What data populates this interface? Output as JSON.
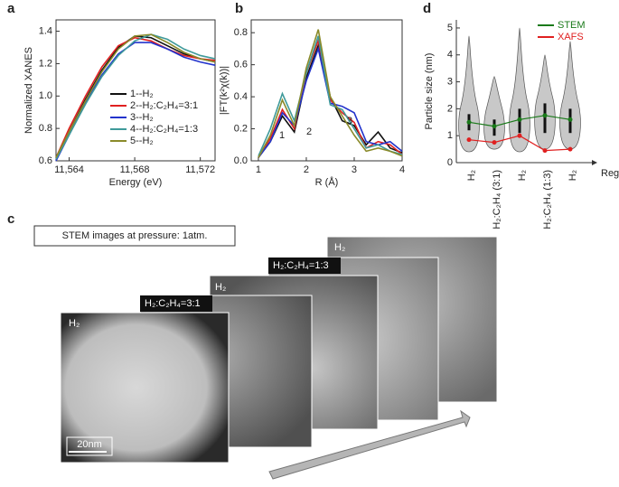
{
  "panel_labels": [
    "a",
    "b",
    "c",
    "d"
  ],
  "chart_data": [
    {
      "type": "line",
      "x_label": "Energy (eV)",
      "y_label": "Normalized XANES",
      "x": [
        11563.2,
        11564,
        11565,
        11566,
        11567,
        11568,
        11569,
        11570,
        11571,
        11572,
        11572.9
      ],
      "xlim": [
        11563.2,
        11572.9
      ],
      "ylim": [
        0.6,
        1.47
      ],
      "xticks": [
        {
          "value": 11564,
          "label": "11,564"
        },
        {
          "value": 11568,
          "label": "11,568"
        },
        {
          "value": 11572,
          "label": "11,572"
        }
      ],
      "yticks": [
        0.6,
        0.8,
        {
          "value": 1,
          "label": "1.0"
        },
        1.2,
        1.4
      ],
      "legend": "lower right",
      "series": [
        {
          "name": "1--H₂",
          "color": "#111111",
          "values": [
            0.62,
            0.78,
            0.98,
            1.16,
            1.3,
            1.37,
            1.36,
            1.31,
            1.26,
            1.23,
            1.21
          ]
        },
        {
          "name": "2--H₂:C₂H₄=3:1",
          "color": "#e02020",
          "values": [
            0.62,
            0.8,
            1.0,
            1.18,
            1.31,
            1.36,
            1.34,
            1.29,
            1.25,
            1.23,
            1.22
          ]
        },
        {
          "name": "3--H₂",
          "color": "#2233cc",
          "values": [
            0.6,
            0.76,
            0.96,
            1.13,
            1.26,
            1.33,
            1.33,
            1.29,
            1.24,
            1.21,
            1.19
          ]
        },
        {
          "name": "4--H₂:C₂H₄=1:3",
          "color": "#3f9a9a",
          "values": [
            0.61,
            0.76,
            0.95,
            1.12,
            1.25,
            1.34,
            1.38,
            1.35,
            1.29,
            1.25,
            1.23
          ]
        },
        {
          "name": "5--H₂",
          "color": "#8a8a2a",
          "values": [
            0.62,
            0.78,
            0.97,
            1.15,
            1.29,
            1.37,
            1.38,
            1.33,
            1.27,
            1.23,
            1.21
          ]
        }
      ]
    },
    {
      "type": "line",
      "x_label": "R (Å)",
      "y_label": "|FT(k²χ(k))|",
      "x": [
        1,
        1.25,
        1.5,
        1.75,
        2,
        2.25,
        2.5,
        2.75,
        3,
        3.25,
        3.5,
        3.75,
        4
      ],
      "xlim": [
        0.85,
        4
      ],
      "ylim": [
        0,
        0.88
      ],
      "xticks": [
        1,
        2,
        3,
        4
      ],
      "yticks": [
        {
          "value": 0,
          "label": "0.0"
        },
        0.2,
        0.4,
        0.6,
        0.8
      ],
      "annotations": [
        "1",
        "2",
        "3"
      ],
      "series": [
        {
          "color": "#111111",
          "values": [
            0.02,
            0.12,
            0.28,
            0.18,
            0.52,
            0.72,
            0.4,
            0.25,
            0.22,
            0.1,
            0.18,
            0.08,
            0.05
          ]
        },
        {
          "color": "#e02020",
          "values": [
            0.02,
            0.14,
            0.32,
            0.2,
            0.55,
            0.75,
            0.38,
            0.3,
            0.24,
            0.08,
            0.12,
            0.1,
            0.04
          ]
        },
        {
          "color": "#2233cc",
          "values": [
            0.02,
            0.12,
            0.3,
            0.22,
            0.5,
            0.7,
            0.36,
            0.34,
            0.3,
            0.12,
            0.1,
            0.12,
            0.06
          ]
        },
        {
          "color": "#3f9a9a",
          "values": [
            0.03,
            0.2,
            0.42,
            0.25,
            0.55,
            0.78,
            0.35,
            0.32,
            0.2,
            0.08,
            0.1,
            0.06,
            0.04
          ]
        },
        {
          "color": "#8a8a2a",
          "values": [
            0.02,
            0.16,
            0.38,
            0.22,
            0.58,
            0.82,
            0.4,
            0.28,
            0.16,
            0.06,
            0.08,
            0.06,
            0.03
          ]
        }
      ]
    },
    {
      "type": "violin",
      "x_label": "Regime",
      "y_label": "Particle size (nm)",
      "categories": [
        "H₂",
        "H₂:C₂H₄ (3:1)",
        "H₂",
        "H₂:C₂H₄ (1:3)",
        "H₂"
      ],
      "ylim": [
        0,
        5.3
      ],
      "yticks": [
        0,
        1,
        2,
        3,
        4,
        5
      ],
      "legend": "upper right",
      "violins": [
        {
          "min": 0.4,
          "q1": 1.2,
          "q3": 1.8,
          "max": 4.7
        },
        {
          "min": 0.5,
          "q1": 1.0,
          "q3": 1.6,
          "max": 3.2
        },
        {
          "min": 0.4,
          "q1": 1.1,
          "q3": 2.0,
          "max": 5.0
        },
        {
          "min": 0.5,
          "q1": 1.1,
          "q3": 2.2,
          "max": 4.0
        },
        {
          "min": 0.5,
          "q1": 1.1,
          "q3": 2.0,
          "max": 4.5
        }
      ],
      "series": [
        {
          "name": "STEM",
          "color": "#1a7a1a",
          "values": [
            1.5,
            1.35,
            1.6,
            1.75,
            1.6
          ]
        },
        {
          "name": "XAFS",
          "color": "#e02020",
          "values": [
            0.85,
            0.75,
            1.0,
            0.45,
            0.5
          ]
        }
      ]
    }
  ],
  "stem": {
    "caption": "STEM images at pressure: 1atm.",
    "labels": [
      "H₂",
      "H₂:C₂H₄=3:1",
      "H₂",
      "H₂:C₂H₄=1:3",
      "H₂"
    ],
    "scale_bar": "20nm"
  }
}
